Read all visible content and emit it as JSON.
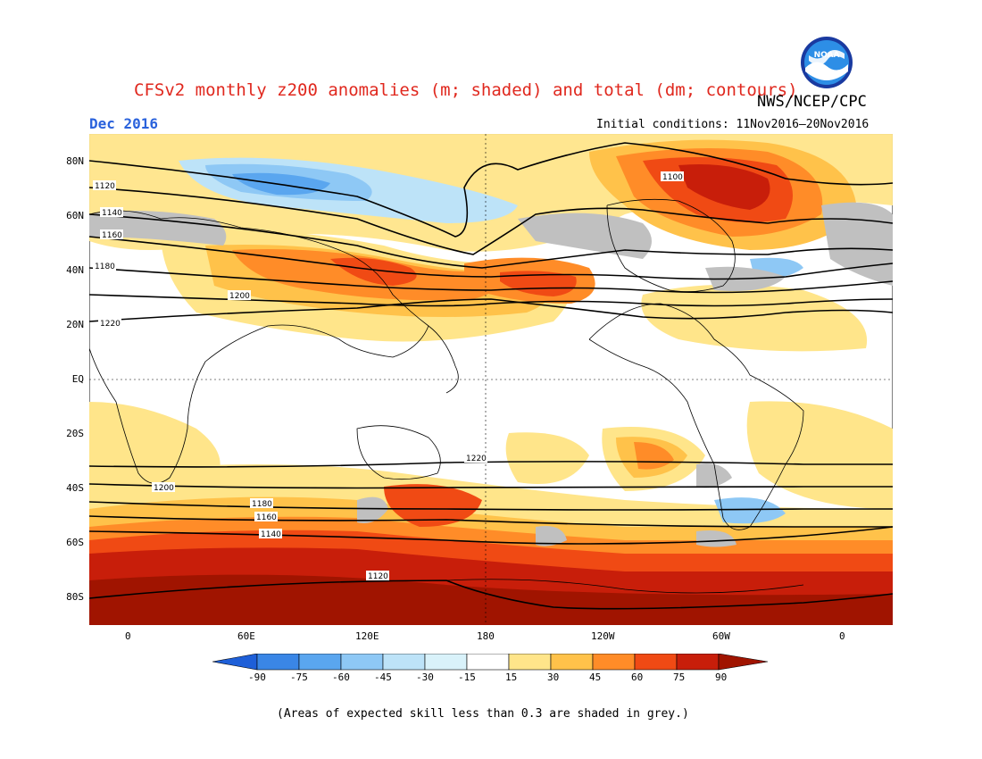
{
  "header": {
    "title": "CFSv2 monthly z200 anomalies (m; shaded) and total (dm; contours)",
    "agency": "NWS/NCEP/CPC",
    "month": "Dec 2016",
    "initial_conditions": "Initial conditions: 11Nov2016–20Nov2016",
    "logo_text": "NOAA"
  },
  "map": {
    "lat_labels": [
      "80N",
      "60N",
      "40N",
      "20N",
      "EQ",
      "20S",
      "40S",
      "60S",
      "80S"
    ],
    "lon_labels": [
      "0",
      "60E",
      "120E",
      "180",
      "120W",
      "60W",
      "0"
    ]
  },
  "contours": {
    "labels_top": [
      "1100",
      "1120",
      "1140",
      "1160",
      "1180",
      "1200",
      "1220"
    ],
    "labels_bottom": [
      "1220",
      "1200",
      "1180",
      "1160",
      "1140",
      "1120"
    ]
  },
  "colorbar": {
    "ticks": [
      "-90",
      "-75",
      "-60",
      "-45",
      "-30",
      "-15",
      "15",
      "30",
      "45",
      "60",
      "75",
      "90"
    ],
    "colors": [
      "#1e5fd8",
      "#3a86e6",
      "#5aa6ef",
      "#8ec8f5",
      "#bde3f8",
      "#ffffff",
      "#ffe58a",
      "#ffc24a",
      "#ff8c28",
      "#f04a14",
      "#c81e0a",
      "#a01400"
    ]
  },
  "footnote": "(Areas of expected skill less than 0.3 are shaded in grey.)",
  "colors": {
    "title": "#e0281e",
    "month": "#2a62dc",
    "skill_grey": "#c0c0c0"
  }
}
